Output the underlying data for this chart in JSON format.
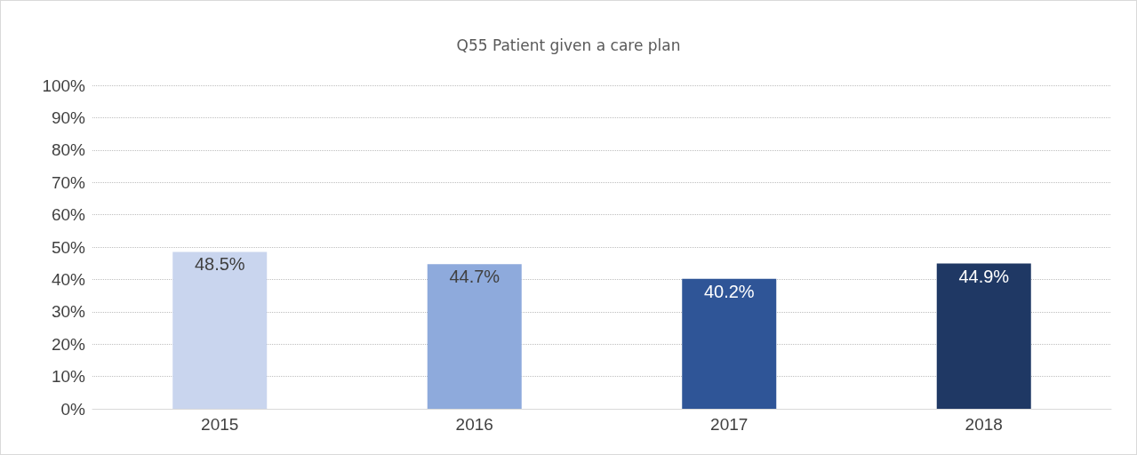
{
  "chart_data": {
    "type": "bar",
    "title": "Q55 Patient given a care plan",
    "categories": [
      "2015",
      "2016",
      "2017",
      "2018"
    ],
    "values": [
      48.5,
      44.7,
      40.2,
      44.9
    ],
    "colors": [
      "#c9d5ee",
      "#8eaadc",
      "#2f5597",
      "#1f3864"
    ],
    "value_labels": [
      "48.5%",
      "44.7%",
      "40.2%",
      "44.9%"
    ],
    "ylim": [
      0,
      100
    ],
    "yticks": [
      {
        "value": 0,
        "label": "0%"
      },
      {
        "value": 10,
        "label": "10%"
      },
      {
        "value": 20,
        "label": "20%"
      },
      {
        "value": 30,
        "label": "30%"
      },
      {
        "value": 40,
        "label": "40%"
      },
      {
        "value": 50,
        "label": "50%"
      },
      {
        "value": 60,
        "label": "60%"
      },
      {
        "value": 70,
        "label": "70%"
      },
      {
        "value": 80,
        "label": "80%"
      },
      {
        "value": 90,
        "label": "90%"
      },
      {
        "value": 100,
        "label": "100%"
      }
    ],
    "grid": "y"
  }
}
